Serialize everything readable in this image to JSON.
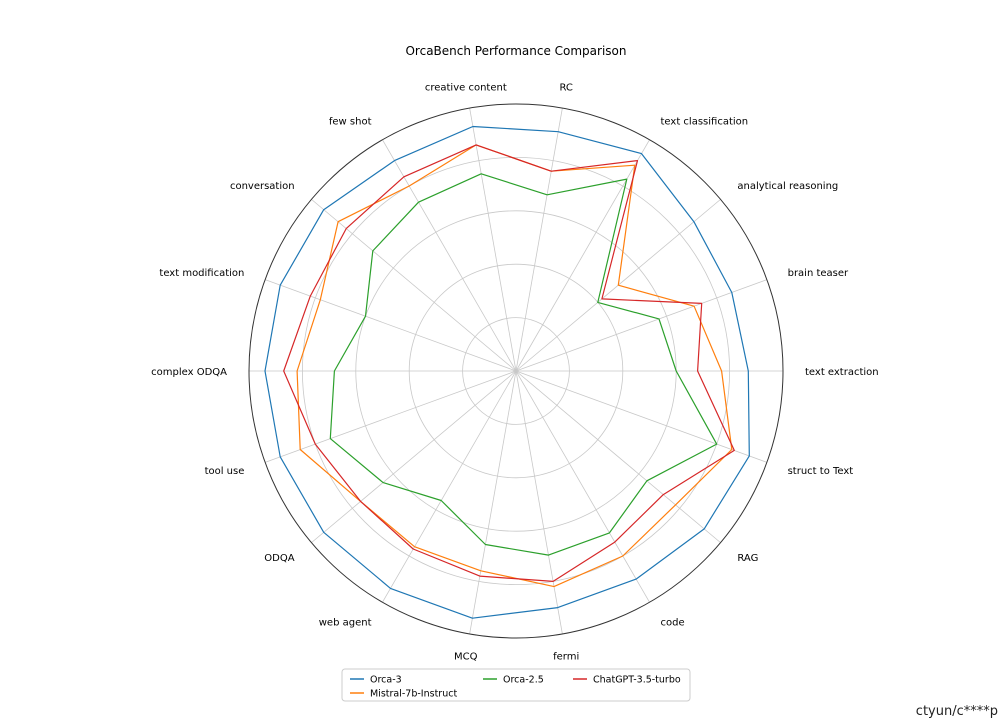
{
  "chart_data": {
    "type": "radar",
    "title": "OrcaBench Performance Comparison",
    "categories": [
      "text extraction",
      "brain teaser",
      "analytical reasoning",
      "text classification",
      "RC",
      "creative content",
      "few shot",
      "conversation",
      "text modification",
      "complex ODQA",
      "tool use",
      "ODQA",
      "web agent",
      "MCQ",
      "fermi",
      "code",
      "RAG",
      "struct to Text"
    ],
    "rlim": [
      0,
      10
    ],
    "grid": true,
    "legend_position": "bottom-center",
    "series": [
      {
        "name": "Orca-3",
        "color": "#1f77b4",
        "values": [
          8.7,
          8.6,
          8.7,
          9.4,
          9.1,
          9.3,
          9.1,
          9.4,
          9.4,
          9.4,
          9.4,
          9.4,
          9.4,
          9.4,
          9.0,
          9.0,
          9.2,
          9.3
        ]
      },
      {
        "name": "Mistral-7b-Instruct",
        "color": "#ff7f0e",
        "values": [
          7.7,
          7.1,
          5.0,
          8.9,
          7.6,
          8.6,
          8.0,
          8.7,
          7.8,
          8.2,
          8.6,
          7.6,
          7.6,
          7.6,
          8.2,
          8.0,
          7.8,
          8.6
        ]
      },
      {
        "name": "Orca-2.5",
        "color": "#2ca02c",
        "values": [
          6.0,
          5.7,
          4.0,
          8.3,
          6.7,
          7.5,
          7.3,
          7.0,
          6.0,
          6.8,
          7.4,
          6.5,
          5.6,
          6.6,
          7.0,
          7.0,
          6.4,
          8.0
        ]
      },
      {
        "name": "ChatGPT-3.5-turbo",
        "color": "#d62728",
        "values": [
          6.8,
          7.4,
          4.2,
          9.1,
          7.6,
          8.6,
          8.4,
          8.3,
          8.2,
          8.7,
          8.0,
          7.6,
          7.7,
          7.8,
          8.0,
          7.4,
          7.2,
          8.7
        ]
      }
    ]
  },
  "watermark": "ctyun/c****p"
}
